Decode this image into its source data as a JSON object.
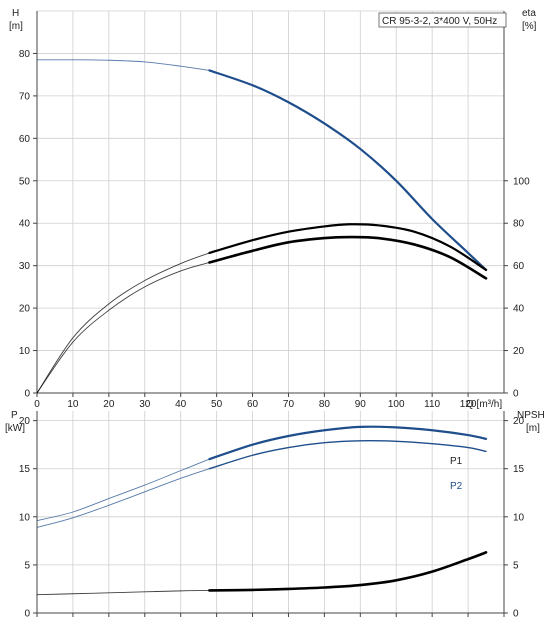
{
  "chart_data": [
    {
      "type": "line",
      "title": "CR 95-3-2, 3*400 V, 50Hz",
      "left_axis_label": [
        "H",
        "[m]"
      ],
      "right_axis_label": [
        "eta",
        "[%]"
      ],
      "xlabel": "Q [m³/h]",
      "xlim": [
        0,
        130
      ],
      "x_ticks": [
        0,
        10,
        20,
        30,
        40,
        50,
        60,
        70,
        80,
        90,
        100,
        110,
        120
      ],
      "left_ylim": [
        0,
        90
      ],
      "left_ticks": [
        0,
        10,
        20,
        30,
        40,
        50,
        60,
        70,
        80
      ],
      "right_ylim": [
        0,
        180
      ],
      "right_ticks": [
        0,
        20,
        40,
        60,
        80,
        100
      ],
      "grid": true,
      "series": [
        {
          "axis": "left",
          "color": "#1f4e8c",
          "x_start_bold": 48,
          "points": [
            [
              0,
              78.5
            ],
            [
              10,
              78.5
            ],
            [
              20,
              78.4
            ],
            [
              30,
              78
            ],
            [
              40,
              77
            ],
            [
              48,
              76
            ],
            [
              60,
              72.5
            ],
            [
              70,
              68.5
            ],
            [
              80,
              63.5
            ],
            [
              90,
              57.5
            ],
            [
              100,
              50
            ],
            [
              110,
              41
            ],
            [
              120,
              33
            ],
            [
              125,
              29
            ]
          ]
        },
        {
          "axis": "right",
          "color": "#000000",
          "x_start_bold": 48,
          "points": [
            [
              0,
              0
            ],
            [
              10,
              26
            ],
            [
              20,
              42
            ],
            [
              30,
              53
            ],
            [
              40,
              61
            ],
            [
              48,
              66
            ],
            [
              60,
              72
            ],
            [
              70,
              76
            ],
            [
              80,
              78.5
            ],
            [
              87,
              79.5
            ],
            [
              95,
              79
            ],
            [
              105,
              76
            ],
            [
              115,
              69
            ],
            [
              125,
              58
            ]
          ]
        },
        {
          "axis": "right",
          "color": "#000000",
          "x_start_bold": 48,
          "bold": true,
          "points": [
            [
              0,
              0
            ],
            [
              10,
              24
            ],
            [
              20,
              39
            ],
            [
              30,
              50
            ],
            [
              40,
              57.5
            ],
            [
              48,
              61.5
            ],
            [
              60,
              67
            ],
            [
              70,
              71
            ],
            [
              80,
              73
            ],
            [
              87,
              73.5
            ],
            [
              95,
              73
            ],
            [
              105,
              70
            ],
            [
              115,
              64
            ],
            [
              125,
              54
            ]
          ]
        }
      ]
    },
    {
      "type": "line",
      "left_axis_label": [
        "P",
        "[kW]"
      ],
      "right_axis_label": [
        "NPSH",
        "[m]"
      ],
      "xlim": [
        0,
        130
      ],
      "left_ylim": [
        0,
        21
      ],
      "left_ticks": [
        0,
        5,
        10,
        15,
        20
      ],
      "right_ylim": [
        0,
        21
      ],
      "right_ticks": [
        0,
        5,
        10,
        15,
        20
      ],
      "grid": true,
      "series": [
        {
          "name": "P1",
          "axis": "left",
          "color": "#1f4e8c",
          "x_start_bold": 48,
          "points": [
            [
              0,
              9.6
            ],
            [
              10,
              10.5
            ],
            [
              20,
              11.9
            ],
            [
              30,
              13.3
            ],
            [
              40,
              14.8
            ],
            [
              48,
              16
            ],
            [
              60,
              17.5
            ],
            [
              70,
              18.4
            ],
            [
              80,
              19.0
            ],
            [
              90,
              19.35
            ],
            [
              100,
              19.3
            ],
            [
              110,
              19.0
            ],
            [
              120,
              18.5
            ],
            [
              125,
              18.1
            ]
          ]
        },
        {
          "name": "P2",
          "axis": "left",
          "color": "#1f4e8c",
          "x_start_bold": 48,
          "thin_bold": true,
          "points": [
            [
              0,
              8.9
            ],
            [
              10,
              9.9
            ],
            [
              20,
              11.2
            ],
            [
              30,
              12.6
            ],
            [
              40,
              14.0
            ],
            [
              48,
              15.0
            ],
            [
              60,
              16.4
            ],
            [
              70,
              17.2
            ],
            [
              80,
              17.7
            ],
            [
              90,
              17.9
            ],
            [
              100,
              17.85
            ],
            [
              110,
              17.6
            ],
            [
              120,
              17.2
            ],
            [
              125,
              16.8
            ]
          ]
        },
        {
          "axis": "right",
          "color": "#000000",
          "x_start_bold": 48,
          "bold": true,
          "points": [
            [
              0,
              1.9
            ],
            [
              10,
              2.0
            ],
            [
              20,
              2.1
            ],
            [
              30,
              2.2
            ],
            [
              40,
              2.3
            ],
            [
              48,
              2.35
            ],
            [
              60,
              2.4
            ],
            [
              70,
              2.5
            ],
            [
              80,
              2.65
            ],
            [
              90,
              2.9
            ],
            [
              100,
              3.4
            ],
            [
              110,
              4.3
            ],
            [
              120,
              5.6
            ],
            [
              125,
              6.3
            ]
          ]
        }
      ]
    }
  ]
}
